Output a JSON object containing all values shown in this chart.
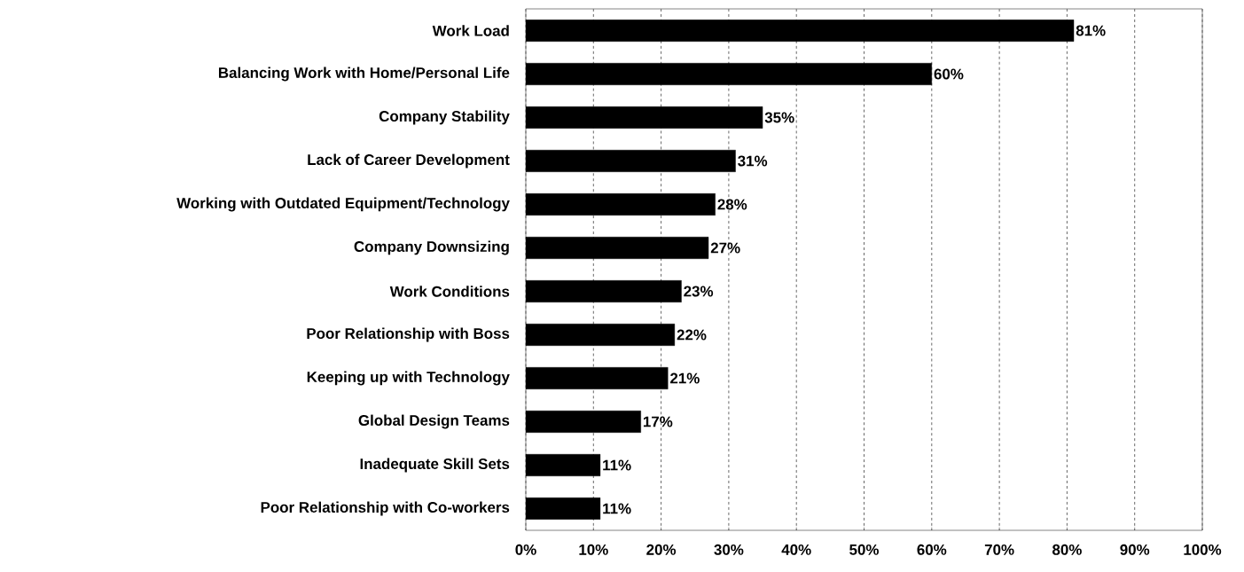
{
  "chart_data": {
    "type": "bar",
    "orientation": "horizontal",
    "categories": [
      "Work Load",
      "Balancing Work with Home/Personal Life",
      "Company Stability",
      "Lack of Career Development",
      "Working with Outdated Equipment/Technology",
      "Company Downsizing",
      "Work Conditions",
      "Poor Relationship with Boss",
      "Keeping up with Technology",
      "Global Design Teams",
      "Inadequate Skill Sets",
      "Poor Relationship with Co-workers"
    ],
    "values": [
      81,
      60,
      35,
      31,
      28,
      27,
      23,
      22,
      21,
      17,
      11,
      11
    ],
    "value_labels": [
      "81%",
      "60%",
      "35%",
      "31%",
      "28%",
      "27%",
      "23%",
      "22%",
      "21%",
      "17%",
      "11%",
      "11%"
    ],
    "color": "#000000",
    "xlim": [
      0,
      100
    ],
    "xticks": [
      {
        "value": 0,
        "label": "0%"
      },
      {
        "value": 10,
        "label": "10%"
      },
      {
        "value": 20,
        "label": "20%"
      },
      {
        "value": 30,
        "label": "30%"
      },
      {
        "value": 40,
        "label": "40%"
      },
      {
        "value": 50,
        "label": "50%"
      },
      {
        "value": 60,
        "label": "60%"
      },
      {
        "value": 70,
        "label": "70%"
      },
      {
        "value": 80,
        "label": "80%"
      },
      {
        "value": 90,
        "label": "90%"
      },
      {
        "value": 100,
        "label": "100%"
      }
    ],
    "grid": "x"
  }
}
